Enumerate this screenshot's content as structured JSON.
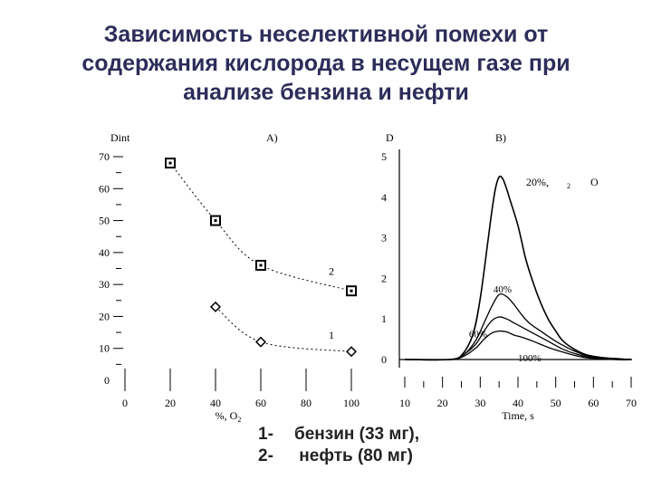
{
  "title": {
    "lines": [
      "Зависимость неселективной помехи от",
      "содержания кислорода в несущем газе при",
      "анализе бензина и нефти"
    ]
  },
  "legend": [
    {
      "num": "1-",
      "text": "бензин  (33 мг),"
    },
    {
      "num": "2-",
      "text": " нефть (80 мг)"
    }
  ],
  "chart_data": [
    {
      "type": "scatter",
      "panel_label": "A)",
      "ylabel": "Dint",
      "xlabel": "%, O",
      "xlabel_sub": "2",
      "xlim": [
        0,
        100
      ],
      "ylim": [
        0,
        70
      ],
      "x_ticks": [
        "0",
        "20",
        "40",
        "60",
        "80",
        "100"
      ],
      "y_ticks": [
        "0",
        "10",
        "20",
        "30",
        "40",
        "50",
        "60",
        "70"
      ],
      "series": [
        {
          "name": "2",
          "marker": "square",
          "x": [
            20,
            40,
            60,
            100
          ],
          "y": [
            68,
            50,
            36,
            28
          ]
        },
        {
          "name": "1",
          "marker": "diamond",
          "x": [
            40,
            60,
            100
          ],
          "y": [
            23,
            12,
            9
          ]
        }
      ],
      "curve_note": "dotted smooth fits through each series"
    },
    {
      "type": "line",
      "panel_label": "B)",
      "ylabel": "D",
      "xlabel": "Time, s",
      "xlim": [
        10,
        70
      ],
      "ylim": [
        0,
        5
      ],
      "x_ticks": [
        "10",
        "20",
        "30",
        "40",
        "50",
        "60",
        "70"
      ],
      "y_ticks": [
        "0",
        "1",
        "2",
        "3",
        "4",
        "5"
      ],
      "annotation": {
        "text": "20%,",
        "sub": "2",
        "tail": "O"
      },
      "series": [
        {
          "name": "20%",
          "x": [
            10,
            22,
            25,
            28,
            30,
            32,
            33,
            34,
            35,
            36,
            37,
            38,
            40,
            42,
            44,
            46,
            48,
            50,
            52,
            55,
            58,
            62,
            66,
            70
          ],
          "y": [
            0,
            0,
            0.1,
            0.6,
            1.5,
            2.9,
            3.6,
            4.2,
            4.5,
            4.45,
            4.2,
            3.9,
            3.3,
            2.5,
            1.9,
            1.4,
            1.0,
            0.7,
            0.45,
            0.25,
            0.12,
            0.05,
            0,
            0
          ]
        },
        {
          "name": "40%",
          "x": [
            10,
            22,
            26,
            29,
            31,
            33,
            35,
            37,
            39,
            41,
            43,
            46,
            50,
            54,
            58,
            62,
            70
          ],
          "y": [
            0,
            0,
            0.15,
            0.5,
            0.9,
            1.3,
            1.6,
            1.55,
            1.35,
            1.1,
            0.9,
            0.7,
            0.45,
            0.25,
            0.1,
            0.05,
            0
          ]
        },
        {
          "name": "60%",
          "x": [
            10,
            22,
            26,
            29,
            31,
            33,
            35,
            37,
            39,
            41,
            44,
            48,
            52,
            56,
            60,
            70
          ],
          "y": [
            0,
            0,
            0.15,
            0.4,
            0.7,
            0.95,
            1.05,
            1.0,
            0.9,
            0.8,
            0.65,
            0.45,
            0.25,
            0.12,
            0.05,
            0
          ]
        },
        {
          "name": "100%",
          "x": [
            10,
            22,
            26,
            29,
            31,
            33,
            35,
            37,
            39,
            41,
            44,
            48,
            52,
            56,
            60,
            70
          ],
          "y": [
            0,
            0,
            0.1,
            0.3,
            0.5,
            0.65,
            0.7,
            0.68,
            0.6,
            0.55,
            0.45,
            0.3,
            0.18,
            0.08,
            0.03,
            0
          ]
        }
      ]
    }
  ]
}
